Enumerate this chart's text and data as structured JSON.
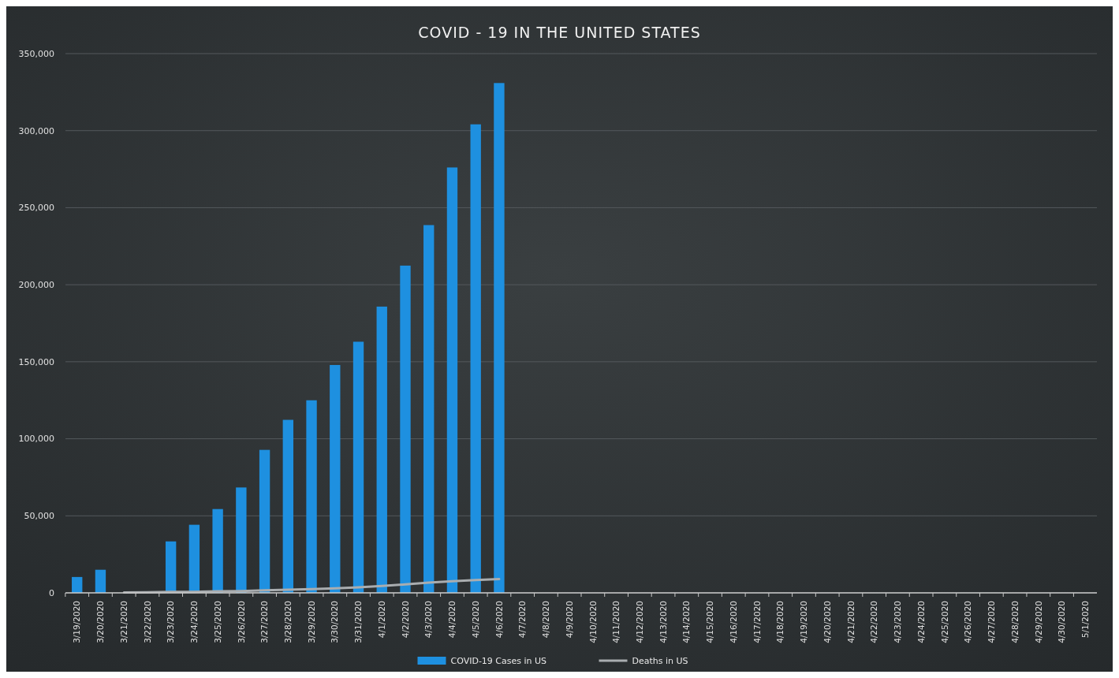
{
  "chart_data": {
    "type": "bar",
    "title": "COVID - 19 IN THE UNITED STATES",
    "categories": [
      "3/19/2020",
      "3/20/2020",
      "3/21/2020",
      "3/22/2020",
      "3/23/2020",
      "3/24/2020",
      "3/25/2020",
      "3/26/2020",
      "3/27/2020",
      "3/28/2020",
      "3/29/2020",
      "3/30/2020",
      "3/31/2020",
      "4/1/2020",
      "4/2/2020",
      "4/3/2020",
      "4/4/2020",
      "4/5/2020",
      "4/6/2020",
      "4/7/2020",
      "4/8/2020",
      "4/9/2020",
      "4/10/2020",
      "4/11/2020",
      "4/12/2020",
      "4/13/2020",
      "4/14/2020",
      "4/15/2020",
      "4/16/2020",
      "4/17/2020",
      "4/18/2020",
      "4/19/2020",
      "4/20/2020",
      "4/21/2020",
      "4/22/2020",
      "4/23/2020",
      "4/24/2020",
      "4/25/2020",
      "4/26/2020",
      "4/27/2020",
      "4/28/2020",
      "4/29/2020",
      "4/30/2020",
      "5/1/2020"
    ],
    "series": [
      {
        "name": "COVID-19 Cases in US",
        "color": "#1e90e0",
        "values": [
          10300,
          15000,
          null,
          null,
          33400,
          44200,
          54400,
          68400,
          92800,
          112300,
          125000,
          147900,
          163000,
          185800,
          212400,
          238700,
          276100,
          304100,
          330900,
          null,
          null,
          null,
          null,
          null,
          null,
          null,
          null,
          null,
          null,
          null,
          null,
          null,
          null,
          null,
          null,
          null,
          null,
          null,
          null,
          null,
          null,
          null,
          null,
          null
        ]
      },
      {
        "name": "Deaths in US",
        "type": "line",
        "color": "#a9adb0",
        "values": [
          null,
          null,
          300,
          400,
          600,
          700,
          1000,
          1200,
          1600,
          2000,
          2400,
          2900,
          3600,
          4500,
          5500,
          6600,
          7600,
          8300,
          8900,
          null,
          null,
          null,
          null,
          null,
          null,
          null,
          null,
          null,
          null,
          null,
          null,
          null,
          null,
          null,
          null,
          null,
          null,
          null,
          null,
          null,
          null,
          null,
          null,
          null
        ]
      }
    ],
    "ylim": [
      0,
      350000
    ],
    "yticks": [
      {
        "value": 0,
        "label": "0"
      },
      {
        "value": 50000,
        "label": "50,000"
      },
      {
        "value": 100000,
        "label": "100,000"
      },
      {
        "value": 150000,
        "label": "150,000"
      },
      {
        "value": 200000,
        "label": "200,000"
      },
      {
        "value": 250000,
        "label": "250,000"
      },
      {
        "value": 300000,
        "label": "300,000"
      },
      {
        "value": 350000,
        "label": "350,000"
      }
    ],
    "grid": "y",
    "legend": "bottom"
  }
}
